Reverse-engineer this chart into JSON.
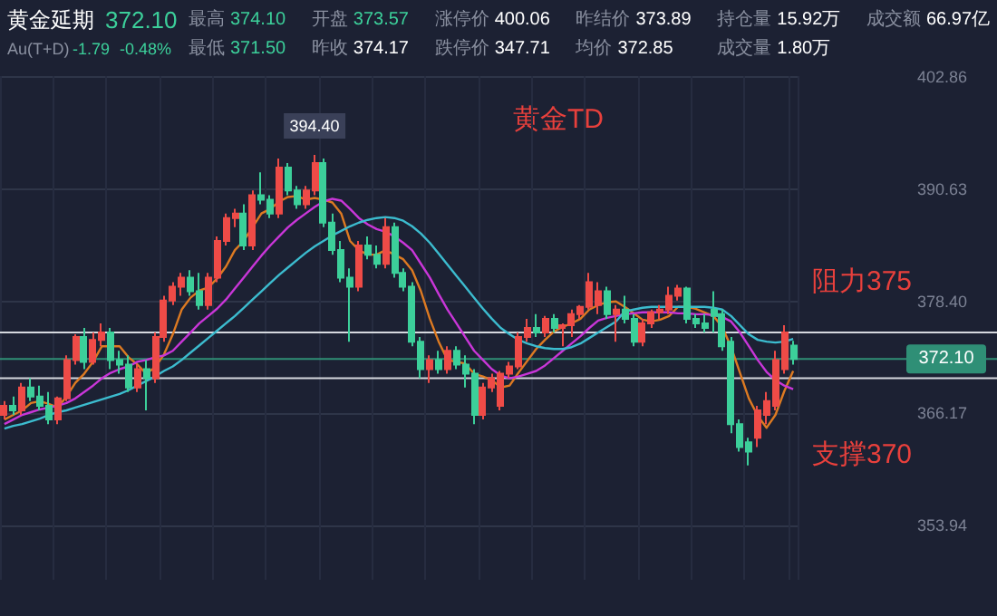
{
  "chart_data": {
    "type": "candlestick",
    "title": "黄金TD",
    "categories": [
      null,
      null,
      null,
      null,
      null,
      null,
      null,
      null,
      null,
      null,
      null,
      null,
      null,
      null,
      null,
      null,
      null,
      null,
      null,
      null,
      null,
      null,
      null,
      null,
      null,
      null,
      null,
      null,
      null,
      null,
      null,
      null,
      null,
      null,
      null,
      null,
      null,
      null,
      null,
      null,
      null,
      null,
      null,
      null,
      null,
      null,
      null,
      null,
      null,
      null,
      null,
      null,
      null,
      null,
      null,
      null,
      null,
      null,
      null,
      null,
      null,
      null,
      null,
      null,
      null,
      null,
      null,
      null,
      null,
      null,
      null,
      null,
      null,
      null,
      null,
      null,
      null,
      null,
      null,
      null,
      null,
      null,
      null,
      null,
      null,
      null,
      null,
      null,
      null,
      null
    ],
    "ohlc": [
      [
        366.0,
        367.5,
        365.5,
        367.0
      ],
      [
        367.0,
        368.0,
        366.0,
        366.5
      ],
      [
        366.5,
        369.5,
        366.0,
        369.0
      ],
      [
        369.0,
        370.0,
        367.5,
        368.0
      ],
      [
        368.0,
        369.2,
        366.5,
        367.0
      ],
      [
        367.0,
        368.5,
        365.0,
        365.5
      ],
      [
        365.5,
        368.0,
        365.0,
        367.8
      ],
      [
        367.8,
        372.5,
        367.5,
        372.0
      ],
      [
        372.0,
        374.8,
        371.5,
        374.5
      ],
      [
        374.5,
        375.5,
        371.0,
        371.8
      ],
      [
        371.8,
        375.0,
        371.5,
        374.2
      ],
      [
        374.2,
        376.0,
        373.5,
        375.0
      ],
      [
        375.0,
        375.5,
        371.0,
        372.0
      ],
      [
        372.0,
        373.0,
        370.5,
        371.5
      ],
      [
        371.5,
        372.5,
        368.5,
        369.0
      ],
      [
        369.0,
        371.5,
        368.5,
        371.0
      ],
      [
        371.0,
        372.0,
        366.5,
        370.0
      ],
      [
        370.0,
        375.0,
        369.5,
        374.5
      ],
      [
        374.5,
        379.0,
        374.0,
        378.5
      ],
      [
        378.5,
        380.5,
        378.0,
        380.0
      ],
      [
        380.0,
        381.5,
        379.0,
        381.0
      ],
      [
        381.0,
        381.8,
        379.0,
        379.5
      ],
      [
        379.5,
        381.5,
        377.5,
        378.0
      ],
      [
        378.0,
        381.5,
        377.5,
        381.0
      ],
      [
        381.0,
        385.5,
        380.5,
        385.0
      ],
      [
        385.0,
        388.0,
        384.5,
        387.5
      ],
      [
        387.5,
        388.5,
        386.5,
        388.0
      ],
      [
        388.0,
        389.0,
        384.0,
        384.5
      ],
      [
        384.5,
        390.5,
        384.0,
        390.0
      ],
      [
        390.0,
        392.5,
        389.0,
        389.5
      ],
      [
        389.5,
        390.0,
        387.5,
        388.0
      ],
      [
        388.0,
        394.0,
        387.5,
        393.0
      ],
      [
        393.0,
        393.5,
        390.0,
        390.5
      ],
      [
        390.5,
        391.0,
        388.5,
        389.0
      ],
      [
        389.0,
        391.0,
        388.5,
        390.5
      ],
      [
        390.5,
        394.4,
        390.0,
        393.5
      ],
      [
        393.5,
        394.0,
        386.5,
        387.0
      ],
      [
        387.0,
        388.0,
        383.5,
        384.0
      ],
      [
        384.0,
        385.0,
        380.5,
        381.0
      ],
      [
        381.0,
        382.0,
        374.0,
        380.0
      ],
      [
        380.0,
        385.0,
        379.5,
        384.5
      ],
      [
        384.5,
        385.5,
        383.0,
        383.5
      ],
      [
        383.5,
        384.5,
        382.0,
        382.5
      ],
      [
        382.5,
        387.5,
        382.0,
        386.5
      ],
      [
        386.5,
        387.0,
        381.0,
        381.5
      ],
      [
        381.5,
        382.0,
        379.5,
        380.0
      ],
      [
        380.0,
        380.5,
        373.5,
        374.0
      ],
      [
        374.0,
        374.5,
        370.0,
        371.0
      ],
      [
        371.0,
        372.5,
        369.5,
        372.0
      ],
      [
        372.0,
        373.0,
        370.5,
        371.0
      ],
      [
        371.0,
        373.5,
        370.5,
        373.0
      ],
      [
        373.0,
        373.5,
        371.0,
        371.5
      ],
      [
        371.5,
        372.5,
        369.0,
        370.5
      ],
      [
        370.5,
        371.0,
        365.0,
        366.0
      ],
      [
        366.0,
        369.5,
        365.5,
        369.0
      ],
      [
        369.0,
        370.5,
        368.5,
        370.0
      ],
      [
        367.0,
        370.8,
        366.5,
        370.5
      ],
      [
        370.5,
        371.8,
        370.0,
        371.3
      ],
      [
        371.3,
        375.0,
        371.0,
        374.5
      ],
      [
        374.5,
        376.5,
        374.0,
        375.5
      ],
      [
        375.5,
        377.0,
        374.5,
        375.0
      ],
      [
        375.0,
        376.8,
        374.5,
        376.5
      ],
      [
        376.5,
        377.0,
        375.0,
        375.5
      ],
      [
        375.5,
        376.0,
        373.5,
        375.8
      ],
      [
        375.8,
        377.5,
        374.5,
        377.0
      ],
      [
        377.0,
        378.0,
        376.5,
        377.8
      ],
      [
        377.8,
        381.5,
        377.5,
        380.5
      ],
      [
        378.0,
        380.5,
        377.0,
        379.5
      ],
      [
        379.5,
        380.0,
        376.5,
        377.0
      ],
      [
        377.0,
        378.0,
        374.0,
        377.5
      ],
      [
        377.5,
        379.0,
        376.0,
        376.5
      ],
      [
        376.5,
        377.0,
        373.5,
        374.0
      ],
      [
        374.0,
        376.5,
        373.5,
        376.0
      ],
      [
        376.0,
        377.5,
        375.5,
        377.2
      ],
      [
        377.2,
        378.0,
        376.5,
        377.5
      ],
      [
        377.5,
        380.0,
        377.0,
        379.0
      ],
      [
        379.0,
        380.2,
        378.5,
        379.8
      ],
      [
        379.8,
        380.0,
        376.0,
        376.5
      ],
      [
        376.5,
        377.0,
        375.5,
        376.0
      ],
      [
        376.0,
        377.0,
        375.0,
        375.5
      ],
      [
        377.5,
        379.5,
        375.0,
        376.8
      ],
      [
        377.0,
        377.5,
        373.0,
        373.5
      ],
      [
        374.0,
        374.5,
        364.0,
        365.0
      ],
      [
        365.0,
        365.5,
        362.0,
        362.5
      ],
      [
        363.0,
        363.5,
        360.5,
        362.0
      ],
      [
        363.5,
        367.0,
        362.5,
        366.5
      ],
      [
        366.0,
        368.5,
        365.0,
        367.5
      ],
      [
        367.0,
        373.0,
        366.5,
        372.0
      ],
      [
        371.0,
        375.8,
        370.5,
        375.0
      ],
      [
        373.57,
        374.1,
        371.5,
        372.1
      ]
    ],
    "series": [
      {
        "type": "line",
        "color": "#dd7a22",
        "values": [
          365.5,
          366,
          366.5,
          367.3,
          367.5,
          367.2,
          366.8,
          368,
          369.5,
          370.5,
          371.8,
          373.5,
          373.5,
          373.5,
          372.3,
          371.5,
          370.5,
          371.2,
          372.6,
          374.8,
          377.5,
          378.8,
          379.6,
          379.9,
          380.9,
          382.2,
          384,
          385,
          386.5,
          388,
          388.5,
          389.3,
          389.8,
          389.9,
          389.5,
          389.7,
          389.5,
          389.2,
          388,
          385,
          384,
          383.5,
          383.5,
          384,
          383.5,
          383,
          381.8,
          379.5,
          376.5,
          374,
          372,
          371.8,
          371.6,
          370.5,
          370.2,
          369.8,
          369,
          369.2,
          370.6,
          371.9,
          373.2,
          374.2,
          375.1,
          375.6,
          376,
          376.5,
          377.5,
          378,
          378.3,
          378.4,
          377.8,
          377.1,
          376.4,
          376.2,
          376.4,
          376.8,
          377.8,
          377.8,
          377.6,
          377.2,
          376.8,
          375.6,
          373.4,
          370.6,
          367.8,
          365.9,
          364.6,
          366,
          368.6,
          370.8
        ]
      },
      {
        "type": "line",
        "color": "#c936d8",
        "values": [
          365,
          365.5,
          366,
          366.3,
          366.6,
          366.8,
          367,
          367.3,
          367.8,
          368.5,
          369.2,
          370,
          370.6,
          371,
          371.3,
          371.8,
          372,
          372.3,
          372.5,
          373,
          374,
          375,
          376,
          376.8,
          377.6,
          378.6,
          379.8,
          381,
          382.2,
          383.4,
          384.5,
          385.5,
          386.5,
          387.3,
          388,
          388.7,
          389.3,
          389.6,
          389.4,
          388.5,
          387.5,
          386.8,
          386.3,
          386,
          385.5,
          384.8,
          384,
          382.5,
          381,
          379.2,
          377.5,
          376,
          374.5,
          373,
          372,
          371,
          370.3,
          370,
          370.2,
          370.5,
          370.8,
          371.4,
          372.2,
          373,
          373.8,
          374.6,
          375.5,
          376.3,
          376.6,
          376.8,
          377,
          377.1,
          377.2,
          377.2,
          377.2,
          377.2,
          377.1,
          377.1,
          377,
          377,
          376.9,
          376.7,
          376.2,
          375,
          373.5,
          372,
          370.7,
          369.8,
          369.2,
          368.8
        ]
      },
      {
        "type": "line",
        "color": "#3cbccf",
        "values": [
          364.5,
          364.8,
          365,
          365.3,
          365.6,
          366,
          366.3,
          366.5,
          366.8,
          367.1,
          367.4,
          367.7,
          368,
          368.3,
          368.7,
          369.2,
          369.7,
          370.2,
          370.8,
          371.3,
          372,
          372.8,
          373.6,
          374.4,
          375.2,
          376,
          376.8,
          377.7,
          378.6,
          379.5,
          380.4,
          381.3,
          382.1,
          382.9,
          383.7,
          384.4,
          385,
          385.6,
          386.1,
          386.6,
          387,
          387.3,
          387.5,
          387.6,
          387.5,
          387.2,
          386.6,
          385.8,
          384.8,
          383.6,
          382.4,
          381.2,
          380,
          378.8,
          377.6,
          376.5,
          375.5,
          374.8,
          374.2,
          373.8,
          373.5,
          373.3,
          373.2,
          373.2,
          373.4,
          373.8,
          374.4,
          375,
          375.6,
          376.2,
          377.3,
          377.5,
          377.7,
          377.8,
          377.8,
          377.8,
          377.8,
          377.8,
          377.8,
          377.8,
          377.7,
          377.5,
          376.8,
          375.8,
          374.8,
          374.2,
          374.0,
          373.9,
          374.0,
          374.3
        ]
      }
    ],
    "ylim": [
      348,
      403
    ],
    "yticks": [
      353.94,
      366.17,
      {
        "value": 378.4,
        "label": "378.40"
      },
      390.63,
      402.86
    ],
    "grid": true,
    "tick_labels": "y",
    "ref_lines": [
      {
        "axis": "y",
        "value": 375,
        "label": "阻力375",
        "color": "#d5d8de"
      },
      {
        "axis": "y",
        "value": 370,
        "label": "支撑370",
        "color": "#d5d8de"
      },
      {
        "axis": "y",
        "value": 372.1,
        "label": "372.10",
        "color": "#2f8f76"
      }
    ],
    "annotations": [
      "黄金延期",
      "Au(T+D)",
      "372.10",
      "-1.79",
      "-0.48%",
      "最高",
      "374.10",
      "开盘",
      "373.57",
      "涨停价",
      "400.06",
      "昨结价",
      "373.89",
      "持仓量",
      "15.92万",
      "成交额",
      "66.97亿",
      "最低",
      "371.50",
      "昨收",
      "374.17",
      "跌停价",
      "347.71",
      "均价",
      "372.85",
      "成交量",
      "1.80万",
      "394.40"
    ]
  }
}
